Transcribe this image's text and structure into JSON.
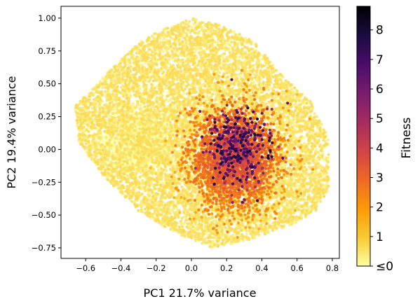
{
  "chart_data": {
    "type": "scatter",
    "title": "",
    "xlabel": "PC1 21.7% variance",
    "ylabel": "PC2 19.4% variance",
    "xlim": [
      -0.74,
      0.84
    ],
    "ylim": [
      -0.83,
      1.09
    ],
    "xticks": [
      -0.6,
      -0.4,
      -0.2,
      0.0,
      0.2,
      0.4,
      0.6,
      0.8
    ],
    "xtick_labels": [
      "−0.6",
      "−0.4",
      "−0.2",
      "0.0",
      "0.2",
      "0.4",
      "0.6",
      "0.8"
    ],
    "yticks": [
      -0.75,
      -0.5,
      -0.25,
      0.0,
      0.25,
      0.5,
      0.75,
      1.0
    ],
    "ytick_labels": [
      "−0.75",
      "−0.50",
      "−0.25",
      "0.00",
      "0.25",
      "0.50",
      "0.75",
      "1.00"
    ],
    "grid": false,
    "colorbar": {
      "label": "Fitness",
      "colormap": "inferno_r",
      "range": [
        0,
        8.8
      ],
      "ticks": [
        0,
        1,
        2,
        3,
        4,
        5,
        6,
        7,
        8
      ],
      "tick_labels": [
        "≤0",
        "1",
        "2",
        "3",
        "4",
        "5",
        "6",
        "7",
        "8"
      ],
      "colors": [
        "#fcffa4",
        "#f9c932",
        "#fb9b06",
        "#ed6925",
        "#cf4446",
        "#a52c60",
        "#781c6d",
        "#4a0c6b",
        "#1b0c41",
        "#000004"
      ]
    },
    "point_groups": [
      {
        "region": "background cloud",
        "fitness": "≤0",
        "x_range": [
          -0.68,
          0.78
        ],
        "y_range": [
          -0.75,
          1.01
        ],
        "color": "#fcffa4"
      },
      {
        "region": "central cluster",
        "fitness": "1-3",
        "x_range": [
          -0.1,
          0.6
        ],
        "y_range": [
          -0.7,
          0.45
        ],
        "color": "#fb9b06"
      },
      {
        "region": "core",
        "fitness": "4-8",
        "x_range": [
          0.05,
          0.45
        ],
        "y_range": [
          -0.35,
          0.35
        ],
        "color": "#781c6d"
      }
    ]
  }
}
